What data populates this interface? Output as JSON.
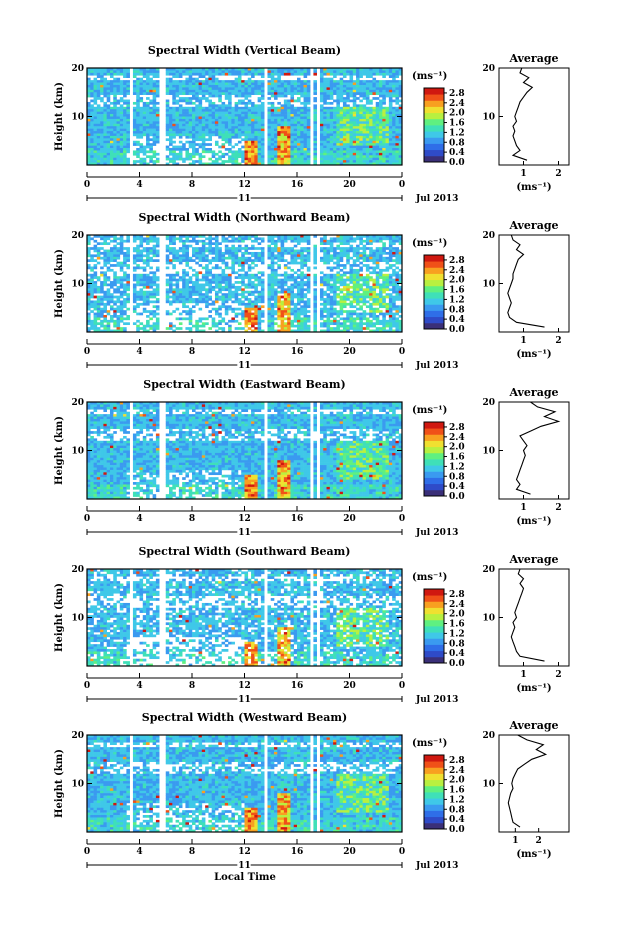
{
  "figure": {
    "xlabel_bottom": "Local Time",
    "date_label": "Jul 2013",
    "day_label": "11"
  },
  "colors": {
    "colormap": [
      "#3a2f78",
      "#2f4bc8",
      "#2f6ee8",
      "#3a9af0",
      "#3fc8e8",
      "#3fe0b8",
      "#5ff080",
      "#b8f040",
      "#f0e030",
      "#f8a020",
      "#f05018",
      "#d01810"
    ]
  },
  "chart_data": [
    {
      "type": "heatmap",
      "title": "Spectral Width (Vertical Beam)",
      "ylabel": "Height (km)",
      "xlabel": "",
      "xticks": [
        "0",
        "4",
        "8",
        "12",
        "16",
        "20",
        "0"
      ],
      "yticks": [
        "10",
        "20"
      ],
      "xlim": [
        0,
        24
      ],
      "ylim": [
        0,
        20
      ],
      "colorbar": {
        "unit": "(ms⁻¹)",
        "ticks": [
          "0.0",
          "0.4",
          "0.8",
          "1.2",
          "1.6",
          "2.0",
          "2.4",
          "2.8"
        ],
        "range": [
          0,
          3.0
        ]
      },
      "average_profile": {
        "title": "Average",
        "xlabel": "(ms⁻¹)",
        "xticks": [
          "1",
          "2"
        ],
        "xlim": [
          0.3,
          2.3
        ],
        "heights": [
          1,
          2,
          3,
          4,
          5,
          6,
          7,
          8,
          9,
          10,
          11,
          12,
          13,
          14,
          15,
          16,
          17,
          18,
          19,
          20
        ],
        "values": [
          1.1,
          0.7,
          0.9,
          0.8,
          0.75,
          0.7,
          0.75,
          0.7,
          0.8,
          0.75,
          0.8,
          0.85,
          0.9,
          1.0,
          1.1,
          1.25,
          1.0,
          1.15,
          0.9,
          0.95
        ]
      }
    },
    {
      "type": "heatmap",
      "title": "Spectral Width (Northward Beam)",
      "ylabel": "Height (km)",
      "xlabel": "",
      "xticks": [
        "0",
        "4",
        "8",
        "12",
        "16",
        "20",
        "0"
      ],
      "yticks": [
        "10",
        "20"
      ],
      "xlim": [
        0,
        24
      ],
      "ylim": [
        0,
        20
      ],
      "colorbar": {
        "unit": "(ms⁻¹)",
        "ticks": [
          "0.0",
          "0.4",
          "0.8",
          "1.2",
          "1.6",
          "2.0",
          "2.4",
          "2.8"
        ],
        "range": [
          0,
          3.0
        ]
      },
      "average_profile": {
        "title": "Average",
        "xlabel": "(ms⁻¹)",
        "xticks": [
          "1",
          "2"
        ],
        "xlim": [
          0.3,
          2.3
        ],
        "heights": [
          1,
          2,
          3,
          4,
          5,
          6,
          7,
          8,
          9,
          10,
          11,
          12,
          13,
          14,
          15,
          16,
          17,
          18,
          19,
          20
        ],
        "values": [
          1.6,
          0.8,
          0.6,
          0.55,
          0.6,
          0.65,
          0.6,
          0.55,
          0.6,
          0.65,
          0.7,
          0.7,
          0.75,
          0.8,
          0.85,
          1.0,
          0.8,
          0.9,
          0.7,
          0.65
        ]
      }
    },
    {
      "type": "heatmap",
      "title": "Spectral Width (Eastward Beam)",
      "ylabel": "Height (km)",
      "xlabel": "",
      "xticks": [
        "0",
        "4",
        "8",
        "12",
        "16",
        "20",
        "0"
      ],
      "yticks": [
        "10",
        "20"
      ],
      "xlim": [
        0,
        24
      ],
      "ylim": [
        0,
        20
      ],
      "colorbar": {
        "unit": "(ms⁻¹)",
        "ticks": [
          "0.0",
          "0.4",
          "0.8",
          "1.2",
          "1.6",
          "2.0",
          "2.4",
          "2.8"
        ],
        "range": [
          0,
          3.0
        ]
      },
      "average_profile": {
        "title": "Average",
        "xlabel": "(ms⁻¹)",
        "xticks": [
          "1",
          "2"
        ],
        "xlim": [
          0.3,
          2.3
        ],
        "heights": [
          1,
          2,
          3,
          4,
          5,
          6,
          7,
          8,
          9,
          10,
          11,
          12,
          13,
          14,
          15,
          16,
          17,
          18,
          19,
          20
        ],
        "values": [
          1.2,
          0.8,
          0.9,
          0.8,
          0.85,
          0.9,
          0.95,
          1.0,
          1.05,
          1.0,
          1.1,
          1.0,
          0.9,
          1.2,
          1.5,
          2.0,
          1.6,
          1.9,
          1.4,
          1.2
        ]
      }
    },
    {
      "type": "heatmap",
      "title": "Spectral Width (Southward Beam)",
      "ylabel": "Height (km)",
      "xlabel": "",
      "xticks": [
        "0",
        "4",
        "8",
        "12",
        "16",
        "20",
        "0"
      ],
      "yticks": [
        "10",
        "20"
      ],
      "xlim": [
        0,
        24
      ],
      "ylim": [
        0,
        20
      ],
      "colorbar": {
        "unit": "(ms⁻¹)",
        "ticks": [
          "0.0",
          "0.4",
          "0.8",
          "1.2",
          "1.6",
          "2.0",
          "2.4",
          "2.8"
        ],
        "range": [
          0,
          3.0
        ]
      },
      "average_profile": {
        "title": "Average",
        "xlabel": "(ms⁻¹)",
        "xticks": [
          "1",
          "2"
        ],
        "xlim": [
          0.3,
          2.3
        ],
        "heights": [
          1,
          2,
          3,
          4,
          5,
          6,
          7,
          8,
          9,
          10,
          11,
          12,
          13,
          14,
          15,
          16,
          17,
          18,
          19,
          20
        ],
        "values": [
          1.6,
          0.9,
          0.8,
          0.75,
          0.7,
          0.65,
          0.7,
          0.75,
          0.7,
          0.8,
          0.75,
          0.8,
          0.85,
          0.9,
          0.95,
          1.0,
          0.9,
          1.0,
          0.85,
          0.9
        ]
      }
    },
    {
      "type": "heatmap",
      "title": "Spectral Width (Westward Beam)",
      "ylabel": "Height (km)",
      "xlabel": "",
      "xticks": [
        "0",
        "4",
        "8",
        "12",
        "16",
        "20",
        "0"
      ],
      "yticks": [
        "10",
        "20"
      ],
      "xlim": [
        0,
        24
      ],
      "ylim": [
        0,
        20
      ],
      "colorbar": {
        "unit": "(ms⁻¹)",
        "ticks": [
          "0.0",
          "0.4",
          "0.8",
          "1.2",
          "1.6",
          "2.0",
          "2.4",
          "2.8"
        ],
        "range": [
          0,
          3.0
        ]
      },
      "average_profile": {
        "title": "Average",
        "xlabel": "(ms⁻¹)",
        "xticks": [
          "1",
          "2"
        ],
        "xlim": [
          0.3,
          3.3
        ],
        "heights": [
          1,
          2,
          3,
          4,
          5,
          6,
          7,
          8,
          9,
          10,
          11,
          12,
          13,
          14,
          15,
          16,
          17,
          18,
          19,
          20
        ],
        "values": [
          1.2,
          0.9,
          0.85,
          0.8,
          0.75,
          0.7,
          0.75,
          0.8,
          0.9,
          0.85,
          0.9,
          1.0,
          1.1,
          1.4,
          1.7,
          2.3,
          1.9,
          2.2,
          1.5,
          1.1
        ]
      }
    }
  ]
}
